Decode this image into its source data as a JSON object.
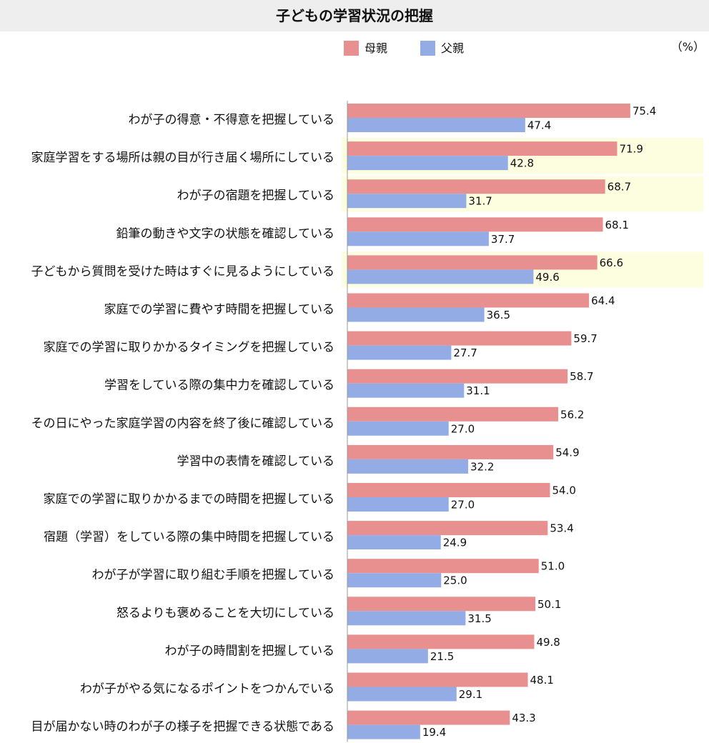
{
  "chart_data": {
    "type": "bar",
    "orientation": "horizontal",
    "title": "子どもの学習状況の把握",
    "unit": "（%）",
    "legend_position": "top",
    "grid": false,
    "xlim": [
      0,
      100
    ],
    "categories": [
      "わが子の得意・不得意を把握している",
      "家庭学習をする場所は親の目が行き届く場所にしている",
      "わが子の宿題を把握している",
      "鉛筆の動きや文字の状態を確認している",
      "子どもから質問を受けた時はすぐに見るようにしている",
      "家庭での学習に費やす時間を把握している",
      "家庭での学習に取りかかるタイミングを把握している",
      "学習をしている際の集中力を確認している",
      "その日にやった家庭学習の内容を終了後に確認している",
      "学習中の表情を確認している",
      "家庭での学習に取りかかるまでの時間を把握している",
      "宿題（学習）をしている際の集中時間を把握している",
      "わが子が学習に取り組む手順を把握している",
      "怒るよりも褒めることを大切にしている",
      "わが子の時間割を把握している",
      "わが子がやる気になるポイントをつかんでいる",
      "目が届かない時のわが子の様子を把握できる状態である"
    ],
    "series": [
      {
        "name": "母親",
        "color": "#e89090",
        "values": [
          75.4,
          71.9,
          68.7,
          68.1,
          66.6,
          64.4,
          59.7,
          58.7,
          56.2,
          54.9,
          54.0,
          53.4,
          51.0,
          50.1,
          49.8,
          48.1,
          43.3
        ]
      },
      {
        "name": "父親",
        "color": "#94ace6",
        "values": [
          47.4,
          42.8,
          31.7,
          37.7,
          49.6,
          36.5,
          27.7,
          31.1,
          27.0,
          32.2,
          27.0,
          24.9,
          25.0,
          31.5,
          21.5,
          29.1,
          19.4
        ]
      }
    ],
    "highlighted_categories": [
      1,
      2,
      4
    ],
    "highlight_color": "#fdfde0"
  }
}
